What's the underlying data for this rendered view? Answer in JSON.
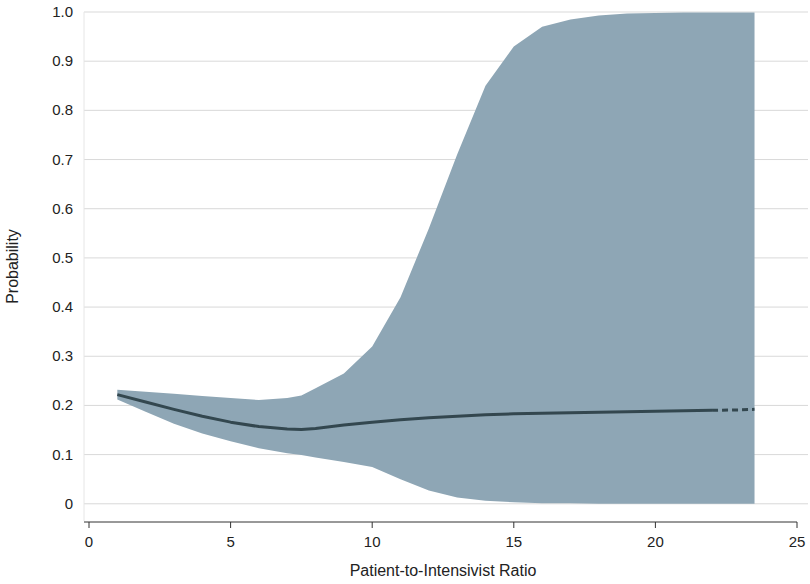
{
  "chart_data": {
    "type": "line",
    "x_label": "Patient-to-Intensivist Ratio",
    "y_label": "Probability",
    "xlim": [
      0,
      25
    ],
    "xticks": [
      0,
      5,
      10,
      15,
      20,
      25
    ],
    "ylim": [
      -0.035,
      1
    ],
    "yticks": [
      0,
      0.1,
      0.2,
      0.3,
      0.4,
      0.5,
      0.6,
      0.7,
      0.8,
      0.9,
      {
        "value": 1,
        "label": "1.0"
      }
    ],
    "grid": true,
    "x": [
      1,
      2,
      3,
      4,
      5,
      6,
      7,
      7.5,
      8,
      9,
      10,
      11,
      12,
      13,
      14,
      15,
      16,
      17,
      18,
      19,
      20,
      21,
      22,
      23,
      23.5
    ],
    "series": [
      {
        "type": "band",
        "color": "#8ea6b5",
        "upper": [
          0.232,
          0.228,
          0.224,
          0.219,
          0.215,
          0.211,
          0.215,
          0.22,
          0.235,
          0.265,
          0.32,
          0.42,
          0.56,
          0.71,
          0.85,
          0.93,
          0.97,
          0.985,
          0.993,
          0.997,
          0.998,
          0.999,
          0.999,
          0.999,
          0.999
        ],
        "lower": [
          0.212,
          0.187,
          0.163,
          0.143,
          0.127,
          0.113,
          0.103,
          0.099,
          0.094,
          0.085,
          0.075,
          0.05,
          0.027,
          0.013,
          0.006,
          0.003,
          0.001,
          0.001,
          0,
          0,
          0,
          0,
          0,
          0,
          0
        ]
      },
      {
        "type": "line",
        "color": "#33474f",
        "line_style": "solid",
        "values": [
          0.222,
          0.207,
          0.192,
          0.178,
          0.166,
          0.157,
          0.152,
          0.151,
          0.153,
          0.16,
          0.166,
          0.171,
          0.175,
          0.178,
          0.181,
          0.183,
          0.184,
          0.185,
          0.186,
          0.187,
          0.188,
          0.189,
          0.19,
          null,
          null
        ]
      },
      {
        "type": "line",
        "color": "#33474f",
        "line_style": "dashed",
        "values": [
          null,
          null,
          null,
          null,
          null,
          null,
          null,
          null,
          null,
          null,
          null,
          null,
          null,
          null,
          null,
          null,
          null,
          null,
          null,
          null,
          null,
          null,
          0.19,
          0.191,
          0.192
        ]
      }
    ]
  }
}
